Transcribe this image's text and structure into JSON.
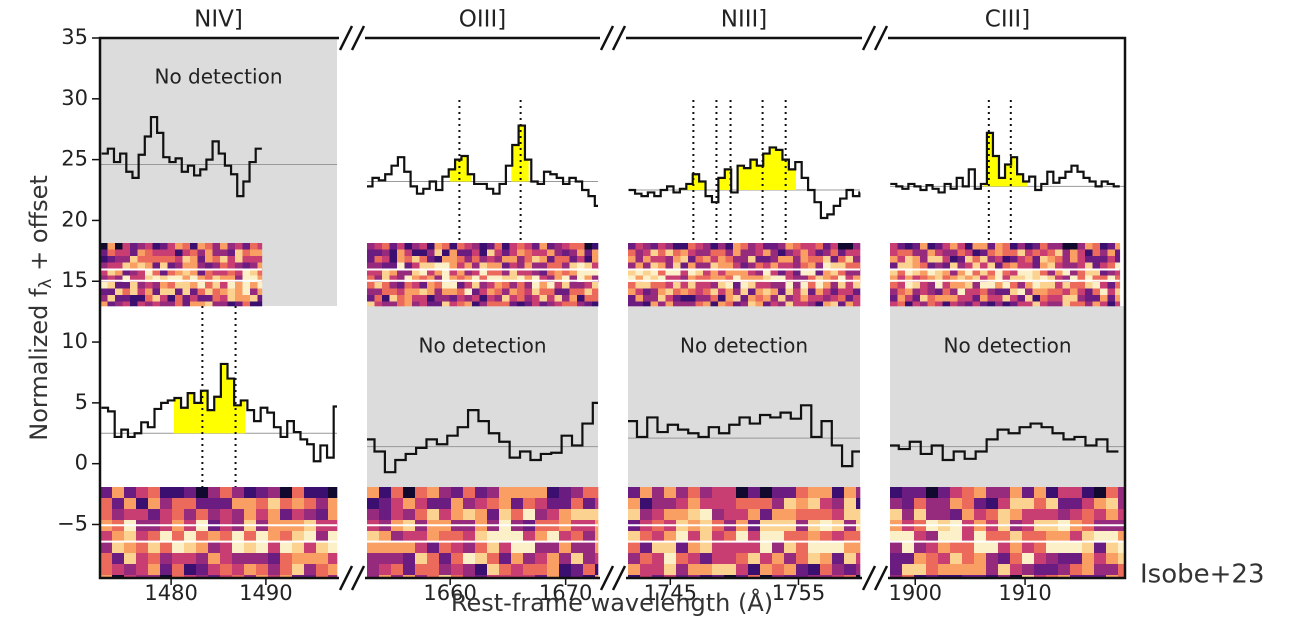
{
  "chart_data": {
    "type": "line",
    "step": true,
    "y_label": [
      "Normalized f",
      "λ",
      " + offset"
    ],
    "x_label": "Rest-frame wavelength (Å)",
    "annotation": "Isobe+23",
    "ylim": [
      -9.4,
      35
    ],
    "yticks": [
      {
        "value": -5,
        "label": "−5"
      },
      0,
      5,
      10,
      15,
      20,
      25,
      30,
      35
    ],
    "line_color": "#111",
    "fill_color": "#ffff00",
    "continuum_color": "#999",
    "shade_color": "#dcdcdc",
    "panels": [
      {
        "title": "NIV]",
        "xlim": [
          1472.5,
          1497.5
        ],
        "xticks": [
          1480,
          1490
        ],
        "spectra": [
          {
            "note": "No detection",
            "continuum": 24.6,
            "x": [
              1473.0,
              1473.65,
              1474.3,
              1474.95,
              1475.6,
              1476.25,
              1476.9,
              1477.55,
              1478.2,
              1478.85,
              1479.5,
              1480.15,
              1480.8,
              1481.45,
              1482.1,
              1482.75,
              1483.4,
              1484.05,
              1484.7,
              1485.35,
              1486.0,
              1486.65,
              1487.3,
              1487.95,
              1488.6,
              1489.25
            ],
            "values": [
              25.5,
              25.9,
              24.8,
              25.5,
              24.0,
              23.5,
              25.4,
              26.9,
              28.5,
              27.2,
              25.2,
              24.8,
              25.1,
              24.0,
              24.5,
              23.7,
              24.2,
              25.0,
              26.5,
              25.5,
              24.5,
              23.8,
              22.0,
              23.2,
              24.8,
              25.9
            ],
            "lines": [],
            "fill": []
          },
          {
            "continuum": 2.5,
            "x": [
              1473,
              1473.7,
              1474.4,
              1475.1,
              1475.8,
              1476.5,
              1477.2,
              1477.9,
              1478.6,
              1479.3,
              1480,
              1480.7,
              1481.4,
              1482.1,
              1482.8,
              1483.5,
              1484.2,
              1484.9,
              1485.6,
              1486.3,
              1487,
              1487.7,
              1488.4,
              1489.1,
              1489.8,
              1490.5,
              1491.2,
              1491.9,
              1492.6,
              1493.3,
              1494,
              1494.7,
              1495.4,
              1496.1,
              1496.8,
              1497.5
            ],
            "values": [
              4.6,
              4.3,
              2.2,
              2.8,
              2.2,
              2.5,
              3.4,
              3.0,
              4.5,
              5.0,
              5.2,
              5.4,
              4.6,
              5.8,
              5.0,
              6.0,
              4.4,
              5.5,
              8.2,
              7.0,
              4.8,
              5.2,
              4.4,
              3.5,
              4.6,
              4.2,
              3.0,
              2.2,
              3.5,
              2.6,
              2.0,
              1.6,
              0.2,
              1.5,
              0.5,
              4.7
            ],
            "lines": [
              1483.3,
              1486.8
            ],
            "fill": [
              [
                1480.3,
                1487.8
              ]
            ]
          }
        ]
      },
      {
        "title": "OIII]",
        "xlim": [
          1652.8,
          1672.8
        ],
        "xticks": [
          1660,
          1670
        ],
        "spectra": [
          {
            "continuum": 23.2,
            "x": [
              1653,
              1653.55,
              1654.1,
              1654.65,
              1655.2,
              1655.75,
              1656.3,
              1656.85,
              1657.4,
              1657.95,
              1658.5,
              1659.05,
              1659.6,
              1660.15,
              1660.7,
              1661.25,
              1661.8,
              1662.35,
              1662.9,
              1663.45,
              1664,
              1664.55,
              1665.1,
              1665.65,
              1666.2,
              1666.75,
              1667.3,
              1667.85,
              1668.4,
              1668.95,
              1669.5,
              1670.05,
              1670.6,
              1671.15,
              1671.7,
              1672.25,
              1672.8
            ],
            "values": [
              22.8,
              23.5,
              23.3,
              23.8,
              24.5,
              25.2,
              24.0,
              22.8,
              22.2,
              22.6,
              23.2,
              22.5,
              23.6,
              24.2,
              25.0,
              25.3,
              23.8,
              23.0,
              23.0,
              22.6,
              22.2,
              23.0,
              24.5,
              26.2,
              27.8,
              25.0,
              23.2,
              23.0,
              24.0,
              23.8,
              23.5,
              23.0,
              23.5,
              23.2,
              22.5,
              22.0,
              21.2
            ],
            "lines": [
              1660.8,
              1666.1
            ],
            "fill": [
              [
                1660.0,
                1661.8
              ],
              [
                1665.3,
                1666.8
              ]
            ]
          },
          {
            "note": "No detection",
            "continuum": 1.4,
            "x": [
              1653,
              1653.9,
              1654.8,
              1655.7,
              1656.6,
              1657.5,
              1658.4,
              1659.3,
              1660.2,
              1661.1,
              1662,
              1662.9,
              1663.8,
              1664.7,
              1665.6,
              1666.5,
              1667.4,
              1668.3,
              1669.2,
              1670.1,
              1671,
              1671.9,
              1672.8
            ],
            "values": [
              2.0,
              1.0,
              -0.7,
              0.3,
              0.8,
              1.3,
              2.0,
              1.6,
              2.3,
              3.0,
              4.4,
              3.5,
              2.5,
              1.8,
              0.5,
              1.0,
              0.3,
              0.8,
              0.9,
              2.3,
              1.5,
              3.3,
              5.0
            ],
            "lines": [],
            "fill": []
          }
        ]
      },
      {
        "title": "NIII]",
        "xlim": [
          1741.7,
          1759.8
        ],
        "xticks": [
          1745,
          1755
        ],
        "spectra": [
          {
            "continuum": 22.5,
            "x": [
              1742,
              1742.5,
              1743,
              1743.5,
              1744,
              1744.5,
              1745,
              1745.5,
              1746,
              1746.5,
              1747,
              1747.5,
              1748,
              1748.5,
              1749,
              1749.5,
              1750,
              1750.5,
              1751,
              1751.5,
              1752,
              1752.5,
              1753,
              1753.5,
              1754,
              1754.5,
              1755,
              1755.5,
              1756,
              1756.5,
              1757,
              1757.5,
              1758,
              1758.5,
              1759,
              1759.5,
              1760
            ],
            "values": [
              22.5,
              22.2,
              22.0,
              22.3,
              22.0,
              22.5,
              22.8,
              22.3,
              22.6,
              23.0,
              23.8,
              23.2,
              22.0,
              21.5,
              23.5,
              24.2,
              22.3,
              24.5,
              24.3,
              25.0,
              24.5,
              25.5,
              26.0,
              25.8,
              25.0,
              24.2,
              24.8,
              23.5,
              22.5,
              21.5,
              20.2,
              20.5,
              21.2,
              21.8,
              22.5,
              22.0,
              22.3
            ],
            "lines": [
              1746.8,
              1748.6,
              1749.7,
              1752.2,
              1754.0
            ],
            "fill": [
              [
                1745.7,
                1754.8
              ]
            ]
          },
          {
            "note": "No detection",
            "continuum": 2.1,
            "x": [
              1742,
              1742.8,
              1743.6,
              1744.4,
              1745.2,
              1746,
              1746.8,
              1747.6,
              1748.4,
              1749.2,
              1750,
              1750.8,
              1751.6,
              1752.4,
              1753.2,
              1754,
              1754.8,
              1755.6,
              1756.4,
              1757.2,
              1758,
              1758.8,
              1759.6
            ],
            "values": [
              3.5,
              2.2,
              3.8,
              2.6,
              3.2,
              2.8,
              2.5,
              2.2,
              3.0,
              2.5,
              3.2,
              3.8,
              3.3,
              4.0,
              3.8,
              4.2,
              3.7,
              4.8,
              2.2,
              3.5,
              1.5,
              -0.2,
              1.0
            ],
            "lines": [],
            "fill": []
          }
        ]
      },
      {
        "title": "CIII]",
        "xlim": [
          1897.7,
          1919.1
        ],
        "xticks": [
          1900,
          1910
        ],
        "spectra": [
          {
            "continuum": 22.8,
            "x": [
              1898,
              1898.55,
              1899.1,
              1899.65,
              1900.2,
              1900.75,
              1901.3,
              1901.85,
              1902.4,
              1902.95,
              1903.5,
              1904.05,
              1904.6,
              1905.15,
              1905.7,
              1906.25,
              1906.8,
              1907.35,
              1907.9,
              1908.45,
              1909,
              1909.55,
              1910.1,
              1910.65,
              1911.2,
              1911.75,
              1912.3,
              1912.85,
              1913.4,
              1913.95,
              1914.5,
              1915.05,
              1915.6,
              1916.15,
              1916.7,
              1917.25,
              1917.8,
              1918.35
            ],
            "values": [
              23.0,
              22.8,
              22.6,
              23.0,
              22.8,
              22.5,
              22.9,
              22.6,
              22.3,
              23.0,
              22.6,
              23.5,
              22.8,
              24.2,
              22.6,
              23.0,
              27.2,
              25.3,
              23.5,
              24.6,
              25.2,
              23.8,
              23.2,
              23.6,
              22.5,
              23.0,
              24.0,
              23.1,
              23.5,
              24.0,
              24.5,
              24.0,
              23.5,
              23.2,
              22.8,
              23.2,
              23.0,
              22.8
            ],
            "lines": [
              1906.7,
              1908.7
            ],
            "fill": [
              [
                1906.2,
                1910.2
              ]
            ]
          },
          {
            "note": "No detection",
            "continuum": 1.4,
            "x": [
              1898,
              1899,
              1900,
              1901,
              1902,
              1903,
              1904,
              1905,
              1906,
              1907,
              1908,
              1909,
              1910,
              1911,
              1912,
              1913,
              1914,
              1915,
              1916,
              1917,
              1918
            ],
            "values": [
              1.5,
              1.2,
              1.8,
              0.8,
              1.5,
              0.3,
              1.0,
              0.4,
              1.0,
              2.0,
              2.8,
              2.5,
              3.0,
              3.3,
              3.0,
              2.5,
              2.0,
              2.2,
              1.5,
              2.0,
              1.0
            ],
            "lines": [],
            "fill": []
          }
        ]
      }
    ]
  }
}
